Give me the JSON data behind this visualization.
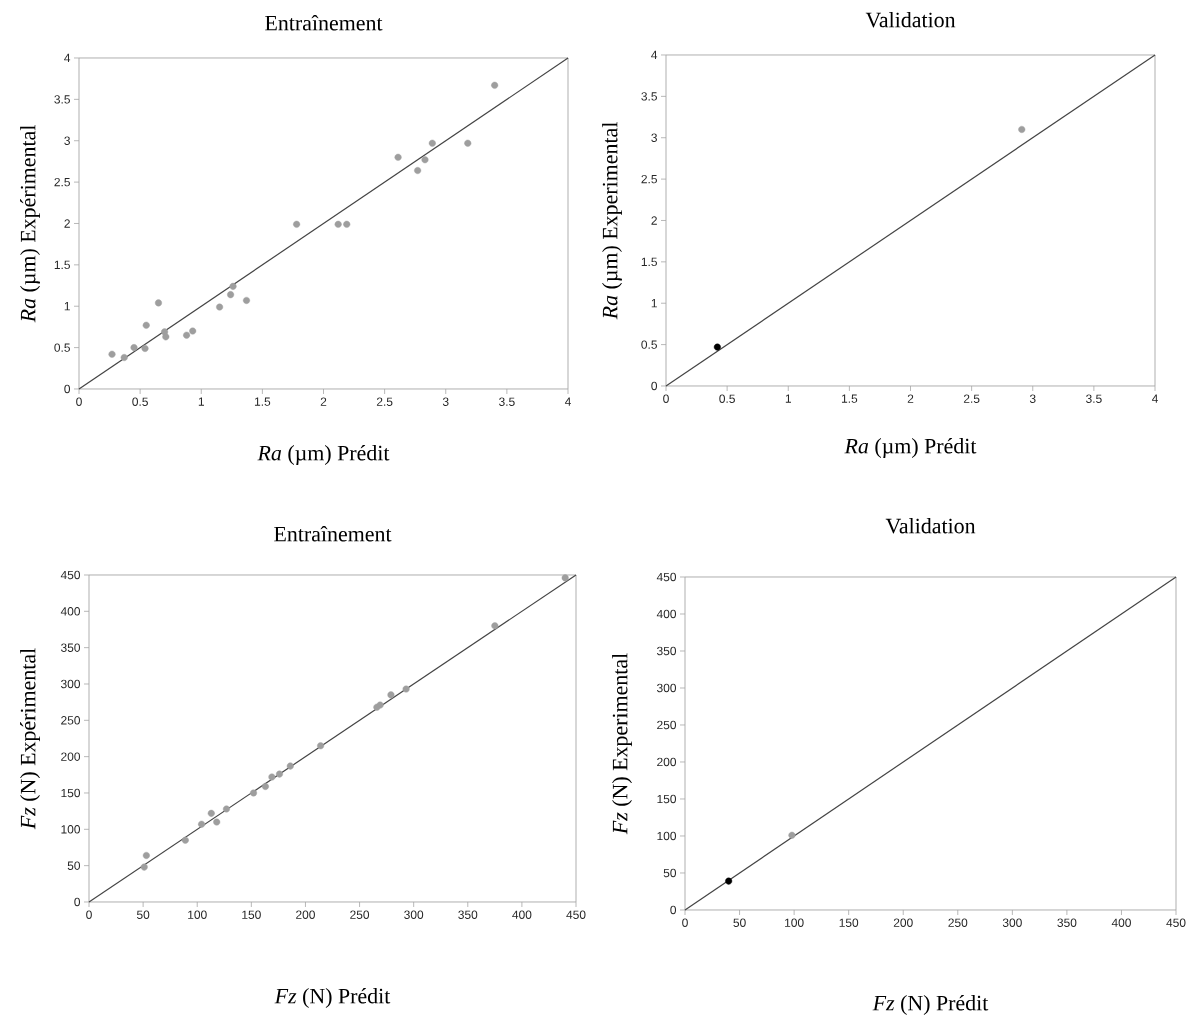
{
  "chart_data": [
    {
      "type": "scatter",
      "title": "Entraînement",
      "xlabel": "*Ra* (µm) Prédit",
      "ylabel": "*Ra* (µm) Expérimental",
      "xlim": [
        0,
        4
      ],
      "ylim": [
        0,
        4
      ],
      "xticks": [
        0,
        0.5,
        1,
        1.5,
        2,
        2.5,
        3,
        3.5,
        4
      ],
      "yticks": [
        0,
        0.5,
        1,
        1.5,
        2,
        2.5,
        3,
        3.5,
        4
      ],
      "series": [
        {
          "type": "scatter",
          "marker": "circle",
          "color": "#9e9e9e",
          "x": [
            0.27,
            0.37,
            0.45,
            0.54,
            0.55,
            0.65,
            0.7,
            0.71,
            0.88,
            0.93,
            1.15,
            1.24,
            1.26,
            1.37,
            1.78,
            2.12,
            2.19,
            2.61,
            2.77,
            2.83,
            2.89,
            3.18,
            3.4
          ],
          "values": [
            0.42,
            0.38,
            0.5,
            0.49,
            0.77,
            1.04,
            0.69,
            0.63,
            0.65,
            0.7,
            0.99,
            1.14,
            1.24,
            1.07,
            1.99,
            1.99,
            1.99,
            2.8,
            2.64,
            2.77,
            2.97,
            2.97,
            3.67
          ]
        },
        {
          "type": "line",
          "color": "#444444",
          "x": [
            0,
            4
          ],
          "values": [
            0,
            4
          ]
        }
      ]
    },
    {
      "type": "scatter",
      "title": "Validation",
      "xlabel": "*Ra* (µm) Prédit",
      "ylabel": "*Ra* (µm) Experimental",
      "xlim": [
        0,
        4
      ],
      "ylim": [
        0,
        4
      ],
      "xticks": [
        0,
        0.5,
        1,
        1.5,
        2,
        2.5,
        3,
        3.5,
        4
      ],
      "yticks": [
        0,
        0.5,
        1,
        1.5,
        2,
        2.5,
        3,
        3.5,
        4
      ],
      "series": [
        {
          "type": "line",
          "color": "#444444",
          "x": [
            0,
            4
          ],
          "values": [
            0,
            4
          ]
        },
        {
          "type": "scatter",
          "marker": "circle",
          "color": "#000000",
          "x": [
            0.42
          ],
          "values": [
            0.47
          ]
        },
        {
          "type": "scatter",
          "marker": "circle",
          "color": "#9e9e9e",
          "x": [
            2.91
          ],
          "values": [
            3.1
          ]
        }
      ]
    },
    {
      "type": "scatter",
      "title": "Entraînement",
      "xlabel": "*Fz* (N) Prédit",
      "ylabel": "*Fz* (N) Expérimental",
      "xlim": [
        0,
        450
      ],
      "ylim": [
        0,
        450
      ],
      "xticks": [
        0,
        50,
        100,
        150,
        200,
        250,
        300,
        350,
        400,
        450
      ],
      "yticks": [
        0,
        50,
        100,
        150,
        200,
        250,
        300,
        350,
        400,
        450
      ],
      "series": [
        {
          "type": "scatter",
          "marker": "circle",
          "color": "#9e9e9e",
          "x": [
            440,
            375,
            293,
            279,
            269,
            266,
            214,
            186,
            176,
            169,
            163,
            152,
            127,
            118,
            113,
            104,
            89,
            53,
            51
          ],
          "values": [
            446,
            380,
            293,
            285,
            271,
            268,
            215,
            187,
            176,
            172,
            159,
            150,
            128,
            110,
            122,
            107,
            85,
            64,
            48
          ]
        },
        {
          "type": "line",
          "color": "#444444",
          "x": [
            0,
            450
          ],
          "values": [
            0,
            450
          ]
        }
      ]
    },
    {
      "type": "scatter",
      "title": "Validation",
      "xlabel": "*Fz* (N) Prédit",
      "ylabel": "*Fz* (N) Experimental",
      "xlim": [
        0,
        450
      ],
      "ylim": [
        0,
        450
      ],
      "xticks": [
        0,
        50,
        100,
        150,
        200,
        250,
        300,
        350,
        400,
        450
      ],
      "yticks": [
        0,
        50,
        100,
        150,
        200,
        250,
        300,
        350,
        400,
        450
      ],
      "series": [
        {
          "type": "line",
          "color": "#444444",
          "x": [
            0,
            450
          ],
          "values": [
            0,
            450
          ]
        },
        {
          "type": "scatter",
          "marker": "circle",
          "color": "#000000",
          "x": [
            40
          ],
          "values": [
            39
          ]
        },
        {
          "type": "scatter",
          "marker": "circle",
          "color": "#9e9e9e",
          "x": [
            98
          ],
          "values": [
            101
          ]
        }
      ]
    }
  ]
}
